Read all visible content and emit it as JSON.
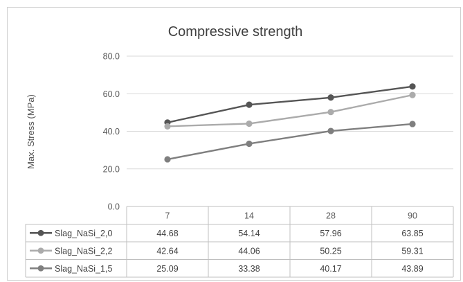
{
  "chart_data": {
    "type": "line",
    "title": "Compressive strength",
    "xlabel": "",
    "ylabel": "Max. Stress (MPa)",
    "ylim": [
      0,
      80
    ],
    "yticks": [
      "0.0",
      "20.0",
      "40.0",
      "60.0",
      "80.0"
    ],
    "categories": [
      "7",
      "14",
      "28",
      "90"
    ],
    "grid": true,
    "legend": "data-table",
    "series": [
      {
        "name": "Slag_NaSi_2,0",
        "color": "#555555",
        "values": [
          44.68,
          54.14,
          57.96,
          63.85
        ],
        "labels": [
          "44.68",
          "54.14",
          "57.96",
          "63.85"
        ]
      },
      {
        "name": "Slag_NaSi_2,2",
        "color": "#ababab",
        "values": [
          42.64,
          44.06,
          50.25,
          59.31
        ],
        "labels": [
          "42.64",
          "44.06",
          "50.25",
          "59.31"
        ]
      },
      {
        "name": "Slag_NaSi_1,5",
        "color": "#7f7f7f",
        "values": [
          25.09,
          33.38,
          40.17,
          43.89
        ],
        "labels": [
          "25.09",
          "33.38",
          "40.17",
          "43.89"
        ]
      }
    ]
  }
}
